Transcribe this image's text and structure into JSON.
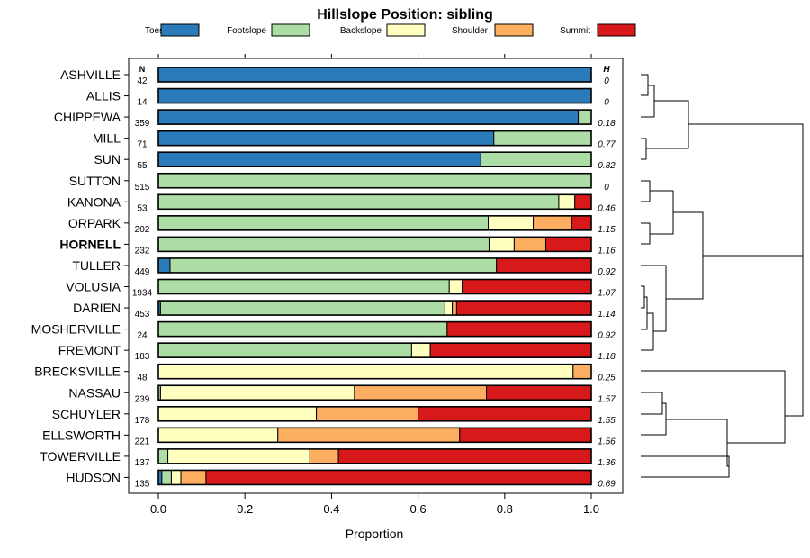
{
  "chart_data": {
    "type": "stacked-bar",
    "title": "Hillslope Position: sibling",
    "xlabel": "Proportion",
    "xlim": [
      0,
      1
    ],
    "x_ticks": [
      "0.0",
      "0.2",
      "0.4",
      "0.6",
      "0.8",
      "1.0"
    ],
    "x_tick_values": [
      0,
      0.2,
      0.4,
      0.6,
      0.8,
      1.0
    ],
    "n_header": "N",
    "h_header": "H",
    "legend": [
      {
        "name": "Toeslope",
        "color": "#2b7bba"
      },
      {
        "name": "Footslope",
        "color": "#abdda4"
      },
      {
        "name": "Backslope",
        "color": "#ffffbf"
      },
      {
        "name": "Shoulder",
        "color": "#fdae61"
      },
      {
        "name": "Summit",
        "color": "#d7191c"
      }
    ],
    "rows": [
      {
        "name": "ASHVILLE",
        "n": "42",
        "h": "0",
        "bold": false,
        "values": [
          1.0,
          0,
          0,
          0,
          0
        ]
      },
      {
        "name": "ALLIS",
        "n": "14",
        "h": "0",
        "bold": false,
        "values": [
          1.0,
          0,
          0,
          0,
          0
        ]
      },
      {
        "name": "CHIPPEWA",
        "n": "359",
        "h": "0.18",
        "bold": false,
        "values": [
          0.97,
          0.03,
          0,
          0,
          0
        ]
      },
      {
        "name": "MILL",
        "n": "71",
        "h": "0.77",
        "bold": false,
        "values": [
          0.775,
          0.225,
          0,
          0,
          0
        ]
      },
      {
        "name": "SUN",
        "n": "55",
        "h": "0.82",
        "bold": false,
        "values": [
          0.745,
          0.255,
          0,
          0,
          0
        ]
      },
      {
        "name": "SUTTON",
        "n": "515",
        "h": "0",
        "bold": false,
        "values": [
          0,
          1.0,
          0,
          0,
          0
        ]
      },
      {
        "name": "KANONA",
        "n": "53",
        "h": "0.46",
        "bold": false,
        "values": [
          0,
          0.925,
          0.037,
          0,
          0.038
        ]
      },
      {
        "name": "ORPARK",
        "n": "202",
        "h": "1.15",
        "bold": false,
        "values": [
          0,
          0.762,
          0.104,
          0.089,
          0.045
        ]
      },
      {
        "name": "HORNELL",
        "n": "232",
        "h": "1.16",
        "bold": true,
        "values": [
          0,
          0.764,
          0.058,
          0.073,
          0.105
        ]
      },
      {
        "name": "TULLER",
        "n": "449",
        "h": "0.92",
        "bold": false,
        "values": [
          0.027,
          0.754,
          0,
          0,
          0.219
        ]
      },
      {
        "name": "VOLUSIA",
        "n": "1934",
        "h": "1.07",
        "bold": false,
        "values": [
          0,
          0.672,
          0.03,
          0,
          0.298
        ]
      },
      {
        "name": "DARIEN",
        "n": "453",
        "h": "1.14",
        "bold": false,
        "values": [
          0.005,
          0.657,
          0.017,
          0.01,
          0.311
        ]
      },
      {
        "name": "MOSHERVILLE",
        "n": "24",
        "h": "0.92",
        "bold": false,
        "values": [
          0,
          0.667,
          0,
          0,
          0.333
        ]
      },
      {
        "name": "FREMONT",
        "n": "183",
        "h": "1.18",
        "bold": false,
        "values": [
          0,
          0.585,
          0.043,
          0,
          0.372
        ]
      },
      {
        "name": "BRECKSVILLE",
        "n": "48",
        "h": "0.25",
        "bold": false,
        "values": [
          0,
          0,
          0.958,
          0.042,
          0
        ]
      },
      {
        "name": "NASSAU",
        "n": "239",
        "h": "1.57",
        "bold": false,
        "values": [
          0,
          0.005,
          0.448,
          0.305,
          0.242
        ]
      },
      {
        "name": "SCHUYLER",
        "n": "178",
        "h": "1.55",
        "bold": false,
        "values": [
          0,
          0,
          0.365,
          0.235,
          0.4
        ]
      },
      {
        "name": "ELLSWORTH",
        "n": "221",
        "h": "1.56",
        "bold": false,
        "values": [
          0,
          0,
          0.276,
          0.42,
          0.304
        ]
      },
      {
        "name": "TOWERVILLE",
        "n": "137",
        "h": "1.36",
        "bold": false,
        "values": [
          0,
          0.022,
          0.328,
          0.066,
          0.584
        ]
      },
      {
        "name": "HUDSON",
        "n": "135",
        "h": "0.69",
        "bold": false,
        "values": [
          0.008,
          0.022,
          0.022,
          0.058,
          0.89
        ]
      }
    ]
  }
}
